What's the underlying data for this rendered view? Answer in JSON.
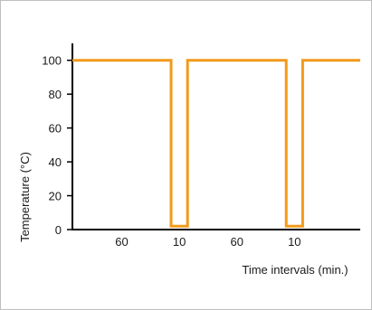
{
  "chart_data": {
    "type": "line",
    "title": "",
    "xlabel": "Time intervals (min.)",
    "ylabel": "Temperature (°C)",
    "ylim": [
      0,
      110
    ],
    "yticks": [
      0,
      20,
      40,
      60,
      80,
      100
    ],
    "xlim": [
      0,
      175
    ],
    "interval_labels": [
      {
        "label": "60",
        "start": 0,
        "end": 60
      },
      {
        "label": "10",
        "start": 60,
        "end": 70
      },
      {
        "label": "60",
        "start": 70,
        "end": 130
      },
      {
        "label": "10",
        "start": 130,
        "end": 140
      }
    ],
    "series": [
      {
        "color": "#f29a1a",
        "x": [
          0,
          60,
          60,
          70,
          70,
          130,
          130,
          140,
          140,
          175
        ],
        "y": [
          100,
          100,
          2,
          2,
          100,
          100,
          2,
          2,
          100,
          100
        ]
      }
    ],
    "grid": false,
    "axis_color": "#000000"
  }
}
